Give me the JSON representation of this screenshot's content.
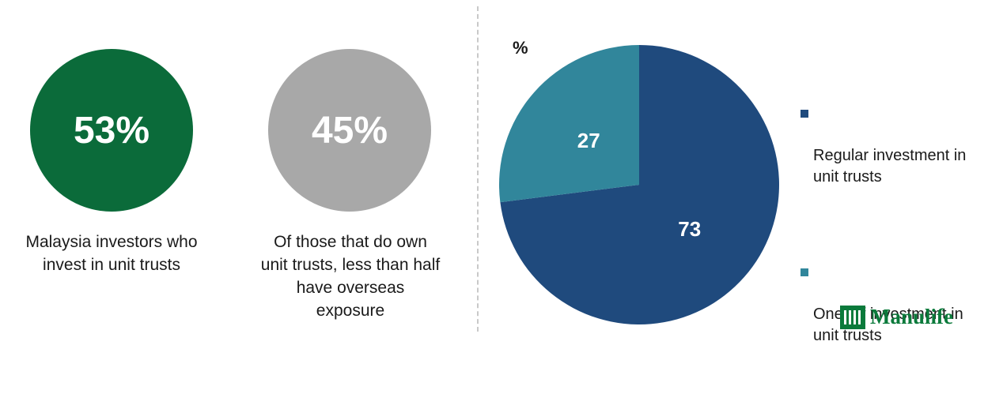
{
  "stats": [
    {
      "value": "53%",
      "caption": "Malaysia investors who\ninvest in unit trusts",
      "color": "#0b6b3a"
    },
    {
      "value": "45%",
      "caption": "Of those that do own\nunit trusts, less than half\nhave overseas\nexposure",
      "color": "#a8a8a8"
    }
  ],
  "chart_data": {
    "type": "pie",
    "unit_label": "%",
    "slices": [
      {
        "label": "Regular investment in\nunit trusts",
        "value": 73,
        "color": "#1f4a7d"
      },
      {
        "label": "One-off investment in\nunit trusts",
        "value": 27,
        "color": "#31869b"
      }
    ],
    "legend_position": "right",
    "start_angle_deg": 0,
    "direction": "clockwise"
  },
  "logo": {
    "text": "Manulife",
    "color": "#0b7a3b"
  }
}
